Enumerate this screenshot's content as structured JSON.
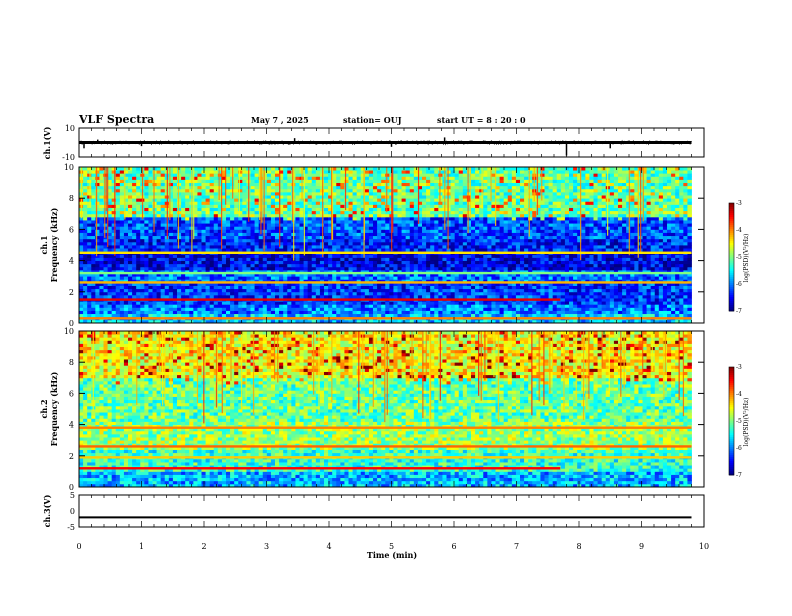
{
  "header": {
    "title": "VLF Spectra",
    "date": "May 7 , 2025",
    "station": "station= OUJ",
    "start": "start  UT =   8 : 20 : 0"
  },
  "chart_data": {
    "type": "heatmap",
    "x": {
      "label": "Time  (min)",
      "range": [
        0,
        10
      ],
      "ticks": [
        0,
        1,
        2,
        3,
        4,
        5,
        6,
        7,
        8,
        9,
        10
      ],
      "data_end": 9.8
    },
    "panels": [
      {
        "id": "ch1v",
        "type": "line",
        "ylabel": "ch.1(V)",
        "ylim": [
          -10,
          10
        ],
        "ytick_labels": [
          "10",
          "-10"
        ],
        "level": 0,
        "noise_amplitude": 1.2,
        "spikes": [
          {
            "t": 0.08,
            "v": -4
          },
          {
            "t": 0.3,
            "v": 2
          },
          {
            "t": 1.0,
            "v": -2.5
          },
          {
            "t": 3.45,
            "v": 3
          },
          {
            "t": 5.0,
            "v": -3
          },
          {
            "t": 5.85,
            "v": 3.5
          },
          {
            "t": 7.8,
            "v": -9
          },
          {
            "t": 8.5,
            "v": -4
          }
        ]
      },
      {
        "id": "ch1s",
        "type": "spectrogram",
        "ylabel_top": "ch.1",
        "ylabel": "Frequency  (kHz)",
        "ylim": [
          0,
          10
        ],
        "yticks": [
          "0",
          "2",
          "4",
          "6",
          "8",
          "10"
        ],
        "colorbar": {
          "label": "log(PSD)(V²/Hz)",
          "ticks": [
            "-3",
            "-4",
            "-5",
            "-6",
            "-7"
          ],
          "range": [
            -7,
            -3
          ]
        },
        "bands": [
          {
            "f": [
              0,
              0.6
            ],
            "v": -5.7
          },
          {
            "f": [
              0.6,
              1.2
            ],
            "v": -6.0
          },
          {
            "f": [
              1.2,
              2.6
            ],
            "v": -6.3
          },
          {
            "f": [
              2.6,
              3.4
            ],
            "v": -6.1
          },
          {
            "f": [
              3.4,
              4.6
            ],
            "v": -6.6
          },
          {
            "f": [
              4.6,
              5.4
            ],
            "v": -6.4
          },
          {
            "f": [
              5.4,
              6.8
            ],
            "v": -6.2
          },
          {
            "f": [
              6.8,
              10
            ],
            "v": -5.1
          }
        ],
        "lines": [
          {
            "f": 1.5,
            "v": -3.4,
            "t": [
              0,
              7.7
            ]
          },
          {
            "f": 2.6,
            "v": -4.2,
            "t": [
              0,
              9.8
            ]
          },
          {
            "f": 4.5,
            "v": -4.4,
            "t": [
              0,
              9.8
            ]
          },
          {
            "f": 0.3,
            "v": -4.0,
            "t": [
              0,
              9.8
            ]
          },
          {
            "f": 3.2,
            "v": -5.0,
            "t": [
              0,
              9.8
            ]
          }
        ]
      },
      {
        "id": "ch2s",
        "type": "spectrogram",
        "ylabel_top": "ch.2",
        "ylabel": "Frequency  (kHz)",
        "ylim": [
          0,
          10
        ],
        "yticks": [
          "0",
          "2",
          "4",
          "6",
          "8",
          "10"
        ],
        "colorbar": {
          "label": "log(PSD)(V²/Hz)",
          "ticks": [
            "-3",
            "-4",
            "-5",
            "-6",
            "-7"
          ],
          "range": [
            -7,
            -3
          ]
        },
        "bands": [
          {
            "f": [
              0,
              0.9
            ],
            "v": -5.8
          },
          {
            "f": [
              0.9,
              2.4
            ],
            "v": -5.3
          },
          {
            "f": [
              2.4,
              4.2
            ],
            "v": -4.9
          },
          {
            "f": [
              4.2,
              7.0
            ],
            "v": -5.1
          },
          {
            "f": [
              7.0,
              10
            ],
            "v": -4.5
          }
        ],
        "lines": [
          {
            "f": 1.2,
            "v": -3.5,
            "t": [
              0,
              7.7
            ]
          },
          {
            "f": 2.6,
            "v": -3.9,
            "t": [
              0,
              9.8
            ]
          },
          {
            "f": 3.8,
            "v": -4.0,
            "t": [
              0,
              9.8
            ]
          },
          {
            "f": 1.9,
            "v": -4.3,
            "t": [
              0,
              9.8
            ]
          }
        ]
      },
      {
        "id": "ch3v",
        "type": "line",
        "ylabel": "ch.3(V)",
        "ylim": [
          -5,
          5
        ],
        "ytick_labels": [
          "5",
          "0",
          "-5"
        ],
        "level": -2.0,
        "noise_amplitude": 0,
        "spikes": []
      }
    ]
  }
}
